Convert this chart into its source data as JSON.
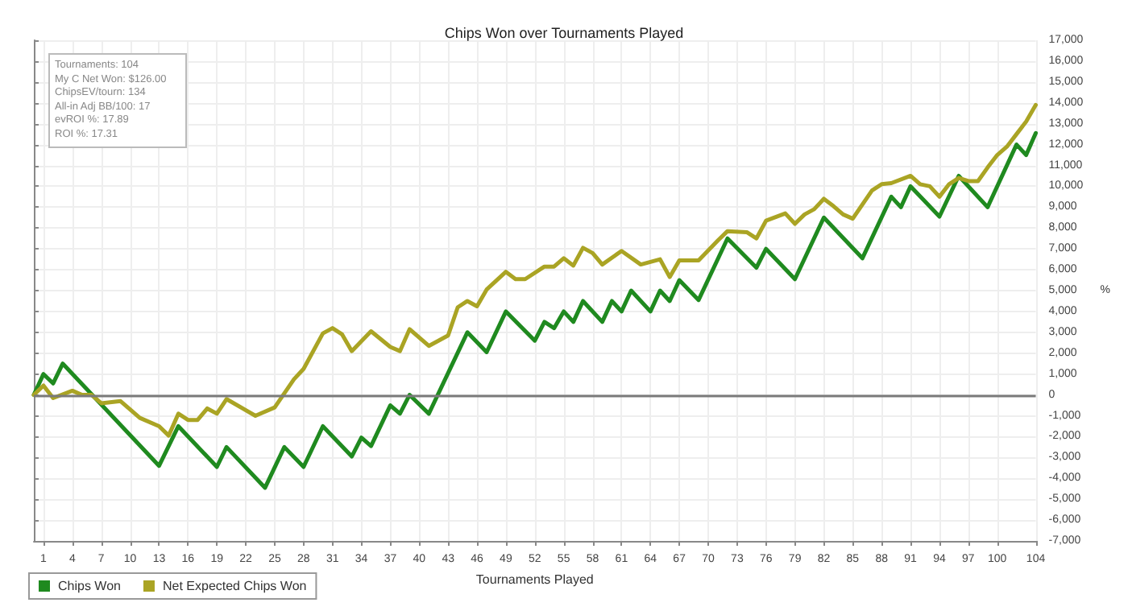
{
  "chart_data": {
    "type": "line",
    "title": "Chips Won over Tournaments Played",
    "xlabel": "Tournaments Played",
    "ylabel": "%",
    "annotations": [
      "Tournaments: 104",
      "My C Net Won: $126.00",
      "ChipsEV/tourn: 134",
      "All-in Adj BB/100: 17",
      "evROI %: 17.89",
      "ROI %: 17.31"
    ],
    "xlim": [
      0,
      104
    ],
    "xticks": [
      1,
      4,
      7,
      10,
      13,
      16,
      19,
      22,
      25,
      28,
      31,
      34,
      37,
      40,
      43,
      46,
      49,
      52,
      55,
      58,
      61,
      64,
      67,
      70,
      73,
      76,
      79,
      82,
      85,
      88,
      91,
      94,
      97,
      100,
      104
    ],
    "ylim": [
      -7000,
      17000
    ],
    "yticks": [
      {
        "value": -7000,
        "label": "-7,000"
      },
      {
        "value": -6000,
        "label": "-6,000"
      },
      {
        "value": -5000,
        "label": "-5,000"
      },
      {
        "value": -4000,
        "label": "-4,000"
      },
      {
        "value": -3000,
        "label": "-3,000"
      },
      {
        "value": -2000,
        "label": "-2,000"
      },
      {
        "value": -1000,
        "label": "-1,000"
      },
      0,
      {
        "value": 1000,
        "label": "1,000"
      },
      {
        "value": 2000,
        "label": "2,000"
      },
      {
        "value": 3000,
        "label": "3,000"
      },
      {
        "value": 4000,
        "label": "4,000"
      },
      {
        "value": 5000,
        "label": "5,000"
      },
      {
        "value": 6000,
        "label": "6,000"
      },
      {
        "value": 7000,
        "label": "7,000"
      },
      {
        "value": 8000,
        "label": "8,000"
      },
      {
        "value": 9000,
        "label": "9,000"
      },
      {
        "value": 10000,
        "label": "10,000"
      },
      {
        "value": 11000,
        "label": "11,000"
      },
      {
        "value": 12000,
        "label": "12,000"
      },
      {
        "value": 13000,
        "label": "13,000"
      },
      {
        "value": 14000,
        "label": "14,000"
      },
      {
        "value": 15000,
        "label": "15,000"
      },
      {
        "value": 16000,
        "label": "16,000"
      },
      {
        "value": 17000,
        "label": "17,000"
      }
    ],
    "grid": true,
    "legend": "bottom left",
    "marker": "none",
    "line_style": "solid",
    "ref_lines": [
      {
        "axis": "y",
        "value": 0,
        "color": "#7a7a7a"
      }
    ],
    "series": [
      {
        "name": "Chips Won",
        "color": "#1f8a1f",
        "x": [
          0,
          1,
          2,
          3,
          13,
          15,
          19,
          20,
          24,
          26,
          28,
          30,
          33,
          34,
          35,
          37,
          38,
          39,
          41,
          45,
          47,
          49,
          52,
          53,
          54,
          55,
          56,
          57,
          59,
          60,
          61,
          62,
          64,
          65,
          66,
          67,
          69,
          72,
          75,
          76,
          79,
          82,
          86,
          89,
          90,
          91,
          94,
          96,
          99,
          102,
          103,
          104
        ],
        "values": [
          0,
          1000,
          550,
          1500,
          -3400,
          -1500,
          -3450,
          -2500,
          -4450,
          -2500,
          -3450,
          -1500,
          -2950,
          -2050,
          -2450,
          -500,
          -900,
          0,
          -900,
          3000,
          2050,
          4000,
          2600,
          3500,
          3200,
          4000,
          3500,
          4500,
          3500,
          4500,
          4000,
          5000,
          4000,
          5000,
          4500,
          5500,
          4550,
          7500,
          6100,
          7000,
          5550,
          8500,
          6550,
          9500,
          9000,
          10000,
          8550,
          10500,
          9000,
          12000,
          11500,
          12550
        ]
      },
      {
        "name": "Net Expected Chips Won",
        "color": "#aaa424",
        "x": [
          0,
          1,
          2,
          4,
          5,
          6,
          7,
          9,
          11,
          13,
          14,
          15,
          16,
          17,
          18,
          19,
          20,
          23,
          25,
          27,
          28,
          30,
          31,
          32,
          33,
          35,
          37,
          38,
          39,
          41,
          42,
          43,
          44,
          45,
          46,
          47,
          49,
          50,
          51,
          53,
          54,
          55,
          56,
          57,
          58,
          59,
          61,
          63,
          65,
          66,
          67,
          69,
          71,
          72,
          74,
          75,
          76,
          78,
          79,
          80,
          81,
          82,
          83,
          84,
          85,
          87,
          88,
          89,
          91,
          92,
          93,
          94,
          95,
          96,
          97,
          98,
          99,
          100,
          101,
          102,
          103,
          104
        ],
        "values": [
          0,
          450,
          -150,
          200,
          0,
          0,
          -400,
          -300,
          -1100,
          -1500,
          -1950,
          -900,
          -1200,
          -1200,
          -650,
          -900,
          -200,
          -1000,
          -600,
          750,
          1250,
          2950,
          3200,
          2900,
          2100,
          3050,
          2300,
          2100,
          3150,
          2350,
          2600,
          2850,
          4200,
          4500,
          4250,
          5050,
          5900,
          5550,
          5550,
          6150,
          6150,
          6550,
          6200,
          7050,
          6800,
          6250,
          6900,
          6250,
          6500,
          5650,
          6450,
          6450,
          7400,
          7850,
          7800,
          7500,
          8350,
          8700,
          8200,
          8650,
          8900,
          9400,
          9050,
          8650,
          8450,
          9800,
          10100,
          10150,
          10500,
          10100,
          10000,
          9500,
          10100,
          10400,
          10250,
          10250,
          10900,
          11500,
          11900,
          12500,
          13100,
          13900
        ]
      }
    ]
  }
}
